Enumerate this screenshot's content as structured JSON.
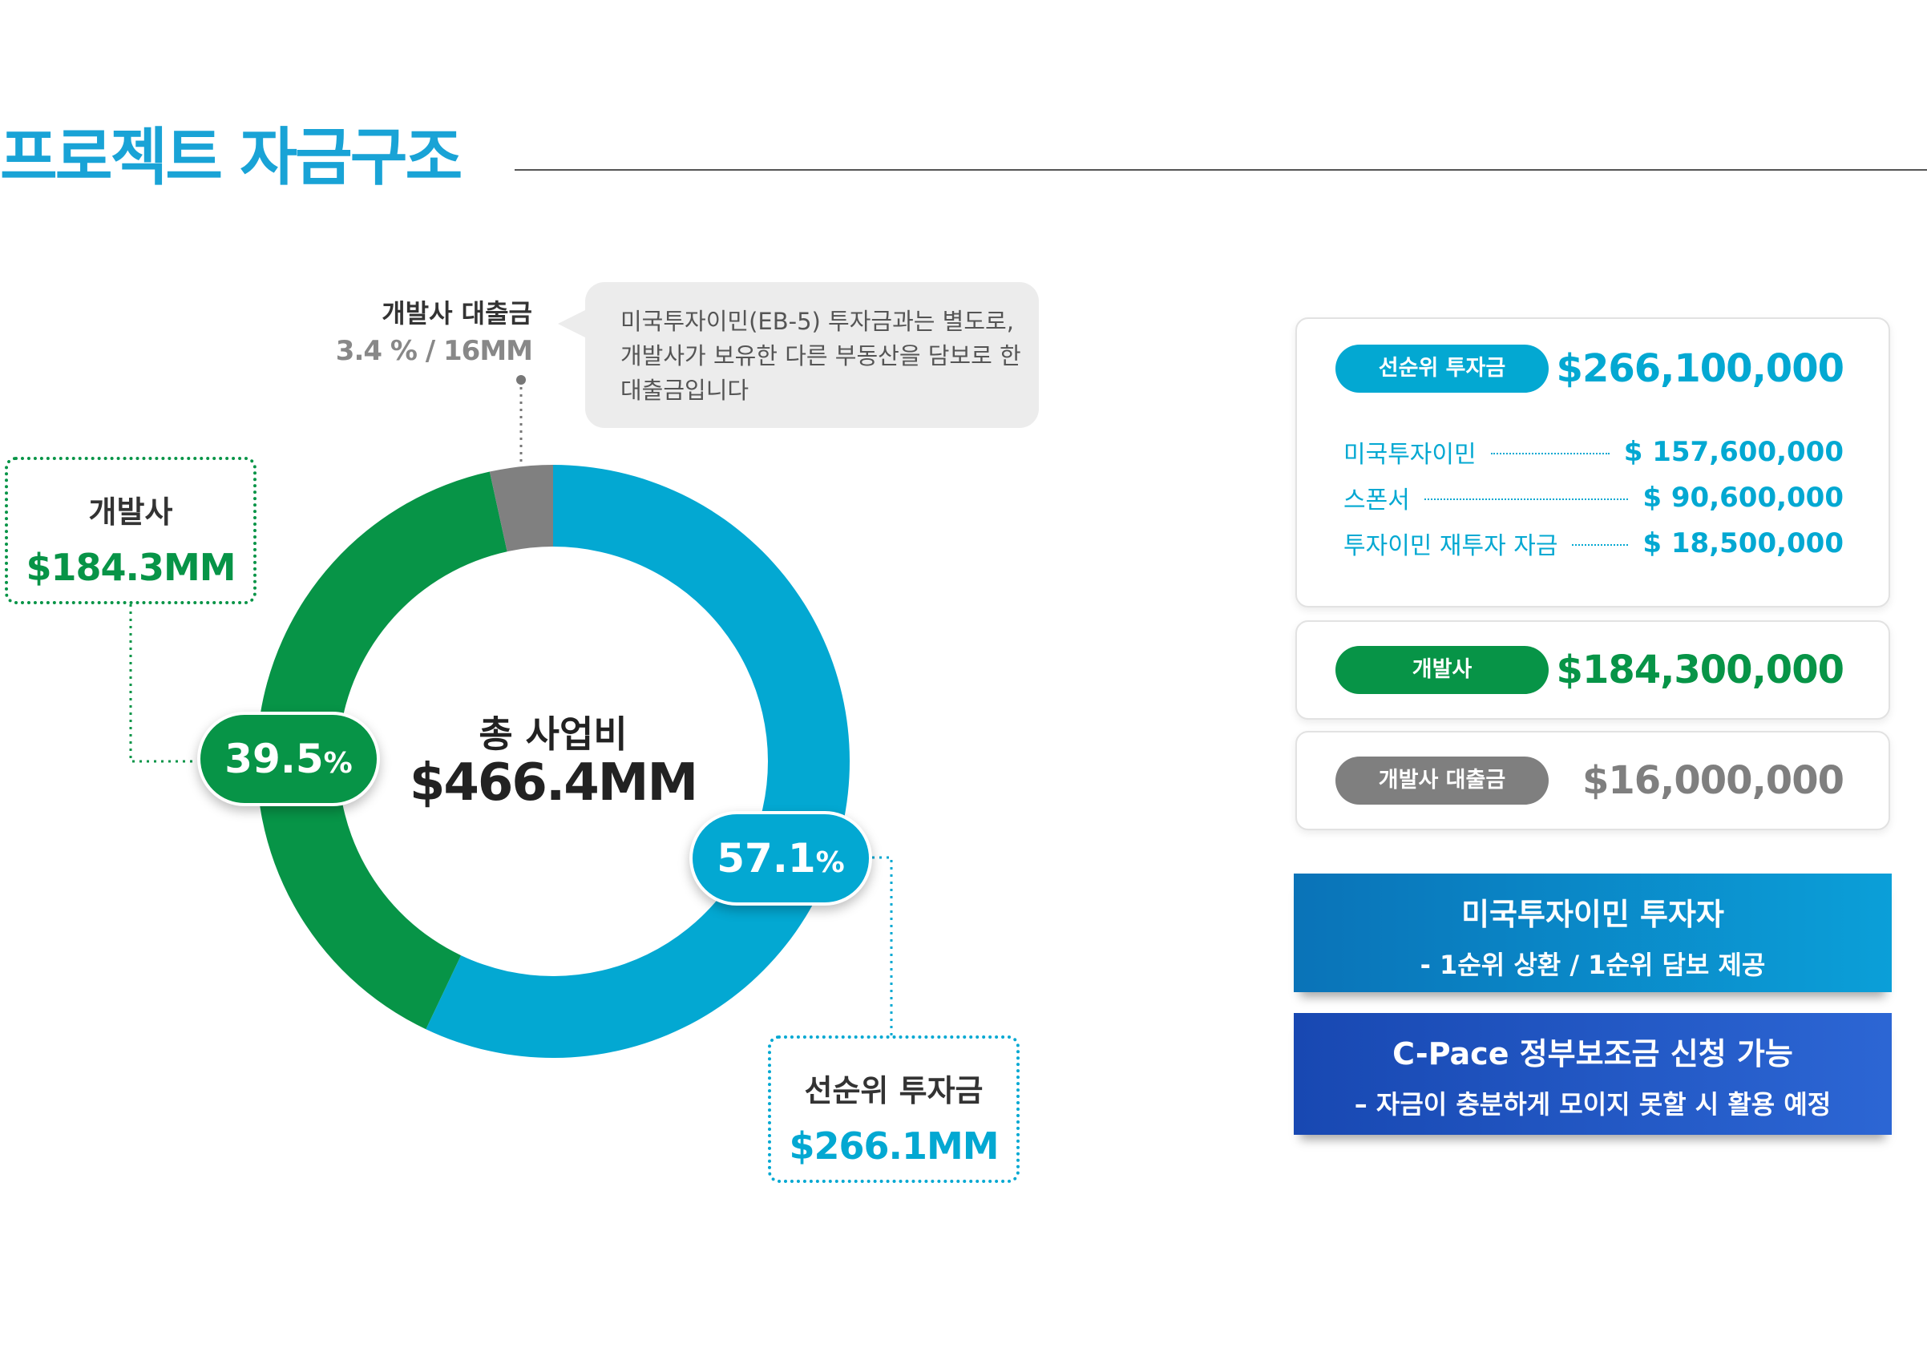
{
  "page": {
    "title": "프로젝트 자금구조"
  },
  "chart_data": {
    "type": "pie",
    "variant": "donut",
    "center_label": "총 사업비",
    "center_value": "$466.4MM",
    "slices": [
      {
        "name": "선순위 투자금",
        "value": 266.1,
        "percent": 57.1,
        "percent_label": "57.1",
        "value_label": "$266.1MM",
        "color": "#03a8d2"
      },
      {
        "name": "개발사",
        "value": 184.3,
        "percent": 39.5,
        "percent_label": "39.5",
        "value_label": "$184.3MM",
        "color": "#079447"
      },
      {
        "name": "개발사 대출금",
        "value": 16,
        "percent": 3.4,
        "value_label": "3.4 % / 16MM",
        "color": "#808080"
      }
    ],
    "percent_unit": "%"
  },
  "callout": {
    "text": "미국투자이민(EB-5) 투자금과는 별도로, 개발사가 보유한 다른 부동산을 담보로 한 대출금입니다"
  },
  "breakdown": {
    "senior": {
      "tag": "선순위 투자금",
      "amount": "$266,100,000",
      "items": [
        {
          "label": "미국투자이민",
          "value": "$ 157,600,000"
        },
        {
          "label": "스폰서",
          "value": "$ 90,600,000"
        },
        {
          "label": "투자이민 재투자 자금",
          "value": "$ 18,500,000"
        }
      ]
    },
    "developer": {
      "tag": "개발사",
      "amount": "$184,300,000"
    },
    "loan": {
      "tag": "개발사 대출금",
      "amount": "$16,000,000"
    }
  },
  "banners": [
    {
      "line1": "미국투자이민 투자자",
      "line2": "- 1순위 상환 / 1순위 담보 제공"
    },
    {
      "line1": "C-Pace 정부보조금 신청 가능",
      "line2": "– 자금이 충분하게 모이지 못할 시 활용 예정"
    }
  ],
  "colors": {
    "accent_blue": "#03a8d2",
    "green": "#079447",
    "gray": "#808080",
    "title_blue": "#19a3d6"
  }
}
